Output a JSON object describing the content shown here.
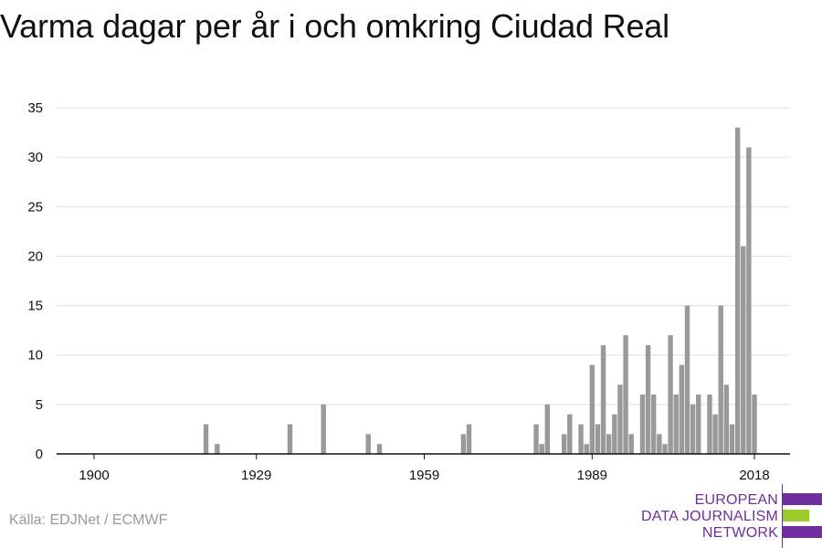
{
  "title": "Varma dagar per år i och omkring Ciudad Real",
  "source": "Källa: EDJNet / ECMWF",
  "logo": {
    "line1": "EUROPEAN",
    "line2": "DATA JOURNALISM",
    "line3": "NETWORK",
    "colors": {
      "primary": "#6f2f9e",
      "accent": "#9ccc2c"
    }
  },
  "colors": {
    "bar": "#999999",
    "grid": "#dddddd",
    "axis": "#111111",
    "text": "#111111",
    "source": "#9a9a9a"
  },
  "chart_data": {
    "type": "bar",
    "title": "Varma dagar per år i och omkring Ciudad Real",
    "xlabel": "",
    "ylabel": "",
    "ylim": [
      0,
      35
    ],
    "xlim": [
      1900,
      2018
    ],
    "yticks": [
      0,
      5,
      10,
      15,
      20,
      25,
      30,
      35
    ],
    "xticks": [
      1900,
      1929,
      1959,
      1989,
      2018
    ],
    "grid": true,
    "x": [
      1920,
      1922,
      1935,
      1941,
      1949,
      1951,
      1966,
      1967,
      1979,
      1980,
      1981,
      1984,
      1985,
      1987,
      1988,
      1989,
      1990,
      1991,
      1992,
      1993,
      1994,
      1995,
      1996,
      1997,
      1998,
      1999,
      2000,
      2001,
      2002,
      2003,
      2004,
      2005,
      2006,
      2007,
      2008,
      2009,
      2010,
      2011,
      2012,
      2013,
      2014,
      2015,
      2016,
      2017
    ],
    "values": [
      3,
      1,
      3,
      5,
      2,
      1,
      2,
      3,
      3,
      1,
      5,
      2,
      4,
      3,
      1,
      9,
      3,
      11,
      2,
      4,
      7,
      12,
      2,
      0,
      6,
      11,
      6,
      2,
      1,
      12,
      6,
      9,
      15,
      5,
      6,
      0,
      6,
      4,
      15,
      7,
      3,
      33,
      21,
      31
    ],
    "extra": {
      "x": [
        2018
      ],
      "values": [
        6
      ]
    }
  }
}
